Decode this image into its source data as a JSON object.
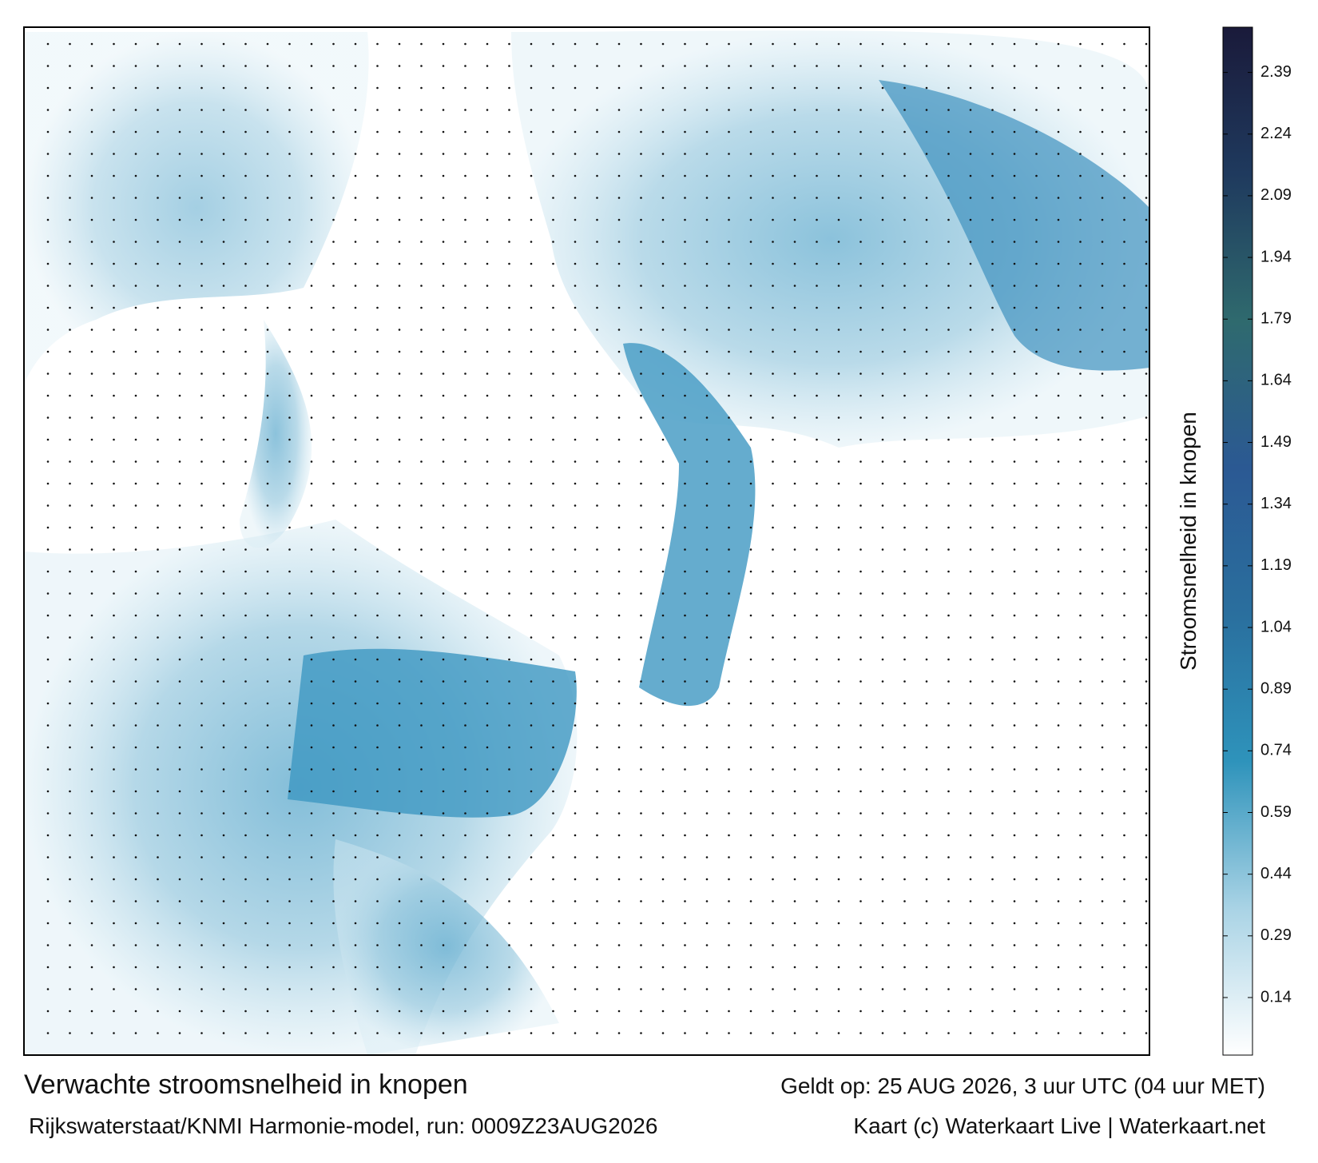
{
  "title": "Verwachte stroomsnelheid in knopen",
  "subtitle": "Rijkswaterstaat/KNMI Harmonie-model, run: 0009Z23AUG2026",
  "valid_time": "Geldt op: 25 AUG 2026, 3 uur UTC (04 uur MET)",
  "credit": "Kaart (c) Waterkaart Live | Waterkaart.net",
  "colorbar": {
    "label": "Stroomsnelheid in knopen",
    "lim": [
      0,
      2.5
    ],
    "ticks": [
      0.14,
      0.29,
      0.44,
      0.59,
      0.74,
      0.89,
      1.04,
      1.19,
      1.34,
      1.49,
      1.64,
      1.79,
      1.94,
      2.09,
      2.24,
      2.39
    ],
    "colors": [
      "#ffffff",
      "#a9d3e5",
      "#2e93bb",
      "#2a6f9e",
      "#2b5993",
      "#2f6a6e",
      "#1f3a5e",
      "#1a1a3a"
    ]
  }
}
